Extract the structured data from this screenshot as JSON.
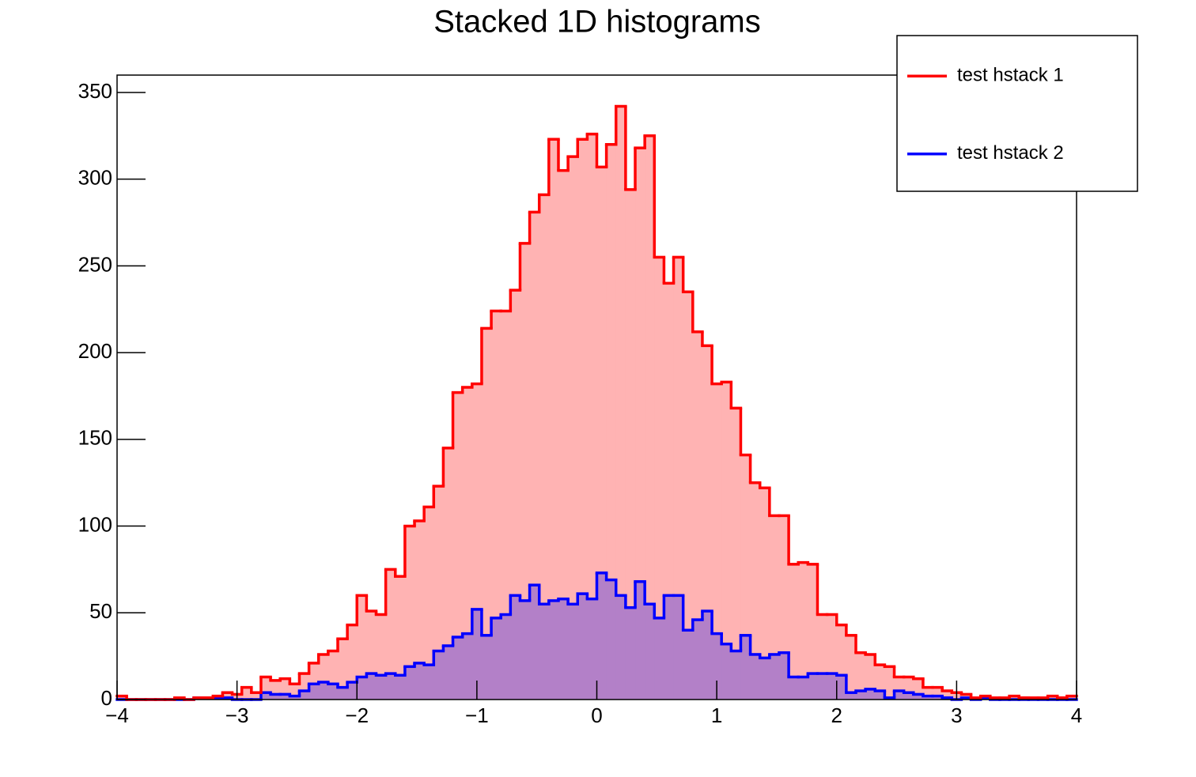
{
  "chart_data": {
    "type": "histogram",
    "title": "Stacked 1D histograms",
    "stacked": true,
    "bins": [
      -4,
      -3.92,
      -3.84,
      -3.76,
      -3.68,
      -3.6,
      -3.52,
      -3.44,
      -3.36,
      -3.28,
      -3.2,
      -3.12,
      -3.04,
      -2.96,
      -2.88,
      -2.8,
      -2.72,
      -2.64,
      -2.56,
      -2.48,
      -2.4,
      -2.32,
      -2.24,
      -2.16,
      -2.08,
      -2,
      -1.92,
      -1.84,
      -1.76,
      -1.68,
      -1.6,
      -1.52,
      -1.44,
      -1.36,
      -1.28,
      -1.2,
      -1.12,
      -1.04,
      -0.96,
      -0.88,
      -0.8,
      -0.72,
      -0.64,
      -0.56,
      -0.48,
      -0.4,
      -0.32,
      -0.24,
      -0.16,
      -0.08,
      0,
      0.08,
      0.16,
      0.24,
      0.32,
      0.4,
      0.48,
      0.56,
      0.64,
      0.72,
      0.8,
      0.88,
      0.96,
      1.04,
      1.12,
      1.2,
      1.28,
      1.36,
      1.44,
      1.52,
      1.6,
      1.68,
      1.76,
      1.84,
      1.92,
      2,
      2.08,
      2.16,
      2.24,
      2.32,
      2.4,
      2.48,
      2.56,
      2.64,
      2.72,
      2.8,
      2.88,
      2.96,
      3.04,
      3.12,
      3.2,
      3.28,
      3.36,
      3.44,
      3.52,
      3.6,
      3.68,
      3.76,
      3.84,
      3.92,
      4
    ],
    "series": [
      {
        "name": "test hstack 1",
        "color": "#ff0000",
        "fill": "#ffb3b3",
        "values": [
          2,
          0,
          0,
          0,
          0,
          0,
          1,
          0,
          0,
          0,
          1,
          3,
          3,
          7,
          4,
          9,
          8,
          9,
          7,
          10,
          12,
          16,
          19,
          28,
          33,
          47,
          36,
          35,
          60,
          57,
          81,
          82,
          91,
          95,
          114,
          141,
          142,
          130,
          177,
          177,
          175,
          176,
          206,
          215,
          236,
          266,
          247,
          258,
          262,
          268,
          234,
          251,
          282,
          241,
          250,
          270,
          208,
          180,
          195,
          195,
          166,
          153,
          144,
          151,
          140,
          104,
          99,
          98,
          80,
          79,
          65,
          66,
          63,
          34,
          34,
          29,
          33,
          22,
          20,
          15,
          18,
          8,
          9,
          9,
          5,
          5,
          4,
          4,
          2,
          1,
          1,
          1,
          1,
          2,
          1,
          1,
          1,
          2,
          1,
          2
        ]
      },
      {
        "name": "test hstack 2",
        "color": "#0000ff",
        "fill": "#b380c8",
        "values": [
          0,
          0,
          0,
          0,
          0,
          0,
          0,
          0,
          1,
          1,
          1,
          1,
          0,
          0,
          0,
          4,
          3,
          3,
          2,
          5,
          9,
          10,
          9,
          7,
          10,
          13,
          15,
          14,
          15,
          14,
          19,
          21,
          20,
          28,
          31,
          36,
          38,
          52,
          37,
          47,
          49,
          60,
          57,
          66,
          55,
          57,
          58,
          55,
          61,
          58,
          73,
          69,
          60,
          53,
          68,
          55,
          47,
          60,
          60,
          40,
          46,
          51,
          38,
          32,
          28,
          37,
          26,
          24,
          26,
          27,
          13,
          13,
          15,
          15,
          15,
          14,
          4,
          5,
          6,
          5,
          1,
          5,
          4,
          3,
          2,
          2,
          1,
          0,
          1,
          0,
          1,
          0,
          0,
          0,
          0,
          0,
          0,
          0,
          0,
          0
        ]
      }
    ],
    "xlim": [
      -4,
      4
    ],
    "ylim": [
      0,
      360
    ],
    "xticks": [
      {
        "value": -4,
        "label": "−4"
      },
      {
        "value": -3,
        "label": "−3"
      },
      {
        "value": -2,
        "label": "−2"
      },
      {
        "value": -1,
        "label": "−1"
      },
      0,
      1,
      2,
      3,
      4
    ],
    "yticks": [
      0,
      50,
      100,
      150,
      200,
      250,
      300,
      350
    ],
    "legend": "top-right"
  }
}
